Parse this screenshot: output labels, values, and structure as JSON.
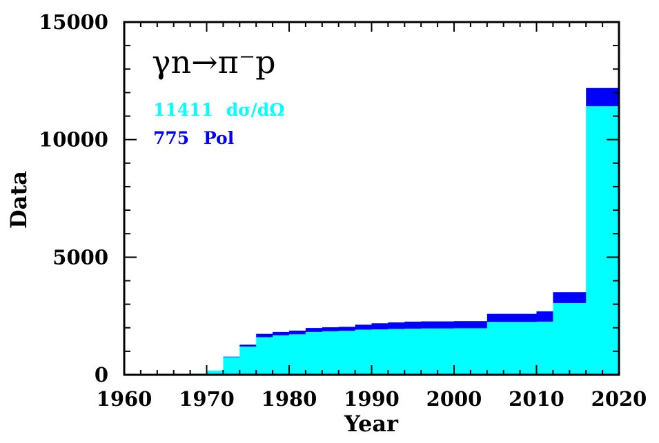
{
  "chart_data": {
    "type": "area",
    "stacked": true,
    "step": true,
    "title": "γn→π⁻p",
    "xlabel": "Year",
    "ylabel": "Data",
    "xlim": [
      1960,
      2020
    ],
    "ylim": [
      0,
      15000
    ],
    "xticks": [
      "1960",
      "1970",
      "1980",
      "1990",
      "2000",
      "2010",
      "2020"
    ],
    "yticks": [
      "0",
      "5000",
      "10000",
      "15000"
    ],
    "x_bins": [
      1960,
      1962,
      1964,
      1966,
      1968,
      1970,
      1972,
      1974,
      1976,
      1978,
      1980,
      1982,
      1984,
      1986,
      1988,
      1990,
      1992,
      1994,
      1996,
      1998,
      2000,
      2002,
      2004,
      2006,
      2008,
      2010,
      2012,
      2014,
      2016,
      2018,
      2020
    ],
    "series": [
      {
        "name": "dσ/dΩ",
        "count_label": "11411",
        "color": "#00ffff",
        "values": [
          40,
          40,
          40,
          40,
          50,
          180,
          750,
          1200,
          1600,
          1680,
          1720,
          1820,
          1850,
          1870,
          1920,
          1930,
          1950,
          1960,
          1970,
          1970,
          1980,
          1980,
          2250,
          2250,
          2250,
          2260,
          3050,
          3050,
          11420,
          11420
        ]
      },
      {
        "name": "Pol",
        "count_label": "775",
        "color": "#0000ff",
        "values": [
          0,
          0,
          0,
          0,
          0,
          0,
          20,
          80,
          140,
          140,
          160,
          170,
          170,
          170,
          210,
          260,
          280,
          300,
          300,
          300,
          300,
          300,
          340,
          340,
          340,
          440,
          460,
          460,
          775,
          775
        ]
      }
    ]
  }
}
